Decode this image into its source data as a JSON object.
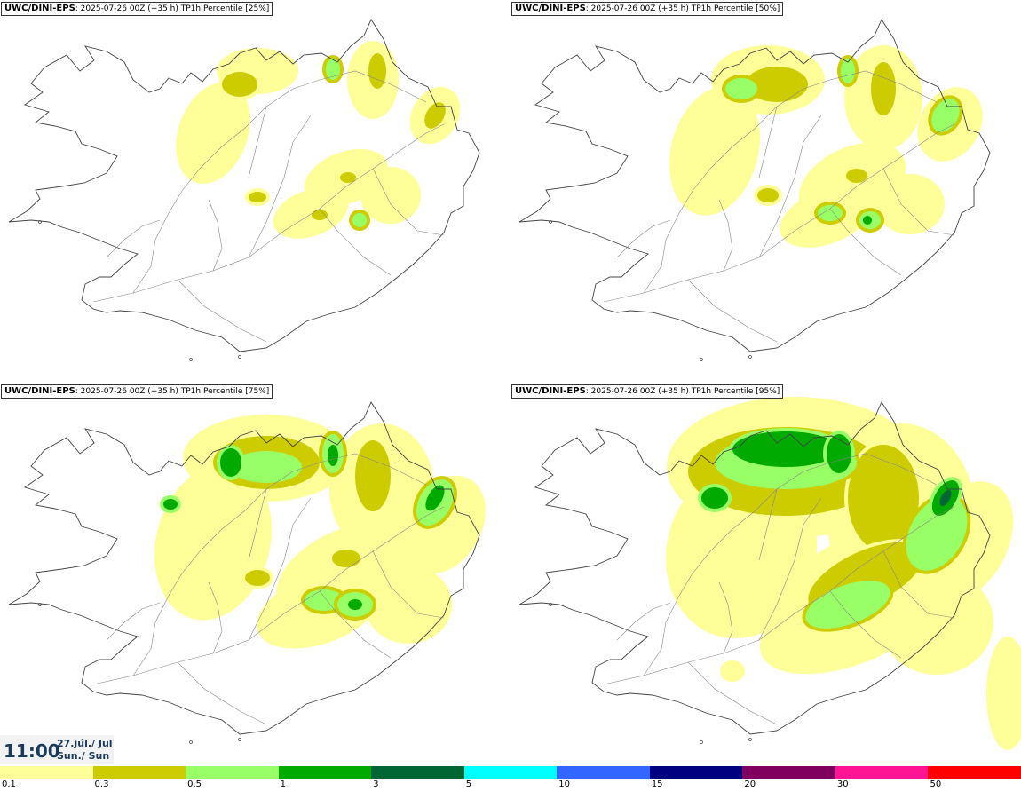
{
  "panels": [
    {
      "model": "UWC/DINI-EPS",
      "info": ": 2025-07-26 00Z (+35 h)",
      "label": " TP1h Percentile [25%]",
      "percentile": 25
    },
    {
      "model": "UWC/DINI-EPS",
      "info": ": 2025-07-26 00Z (+35 h)",
      "label": " TP1h Percentile [50%]",
      "percentile": 50
    },
    {
      "model": "UWC/DINI-EPS",
      "info": ": 2025-07-26 00Z (+35 h)",
      "label": " TP1h Percentile [75%]",
      "percentile": 75
    },
    {
      "model": "UWC/DINI-EPS",
      "info": ": 2025-07-26 00Z (+35 h)",
      "label": " TP1h Percentile [95%]",
      "percentile": 95
    }
  ],
  "valid_time": {
    "time": "11:00",
    "date_line1": "27.júl./ Jul",
    "date_line2": "Sun./ Sun"
  },
  "legend": {
    "colors": [
      "#ffff99",
      "#cccc00",
      "#99ff66",
      "#00aa00",
      "#006633",
      "#00ffff",
      "#3366ff",
      "#000080",
      "#800060",
      "#ff1493",
      "#ff0000"
    ],
    "labels": [
      "0.1",
      "0.3",
      "0.5",
      "1",
      "3",
      "5",
      "10",
      "15",
      "20",
      "30",
      "50"
    ]
  }
}
